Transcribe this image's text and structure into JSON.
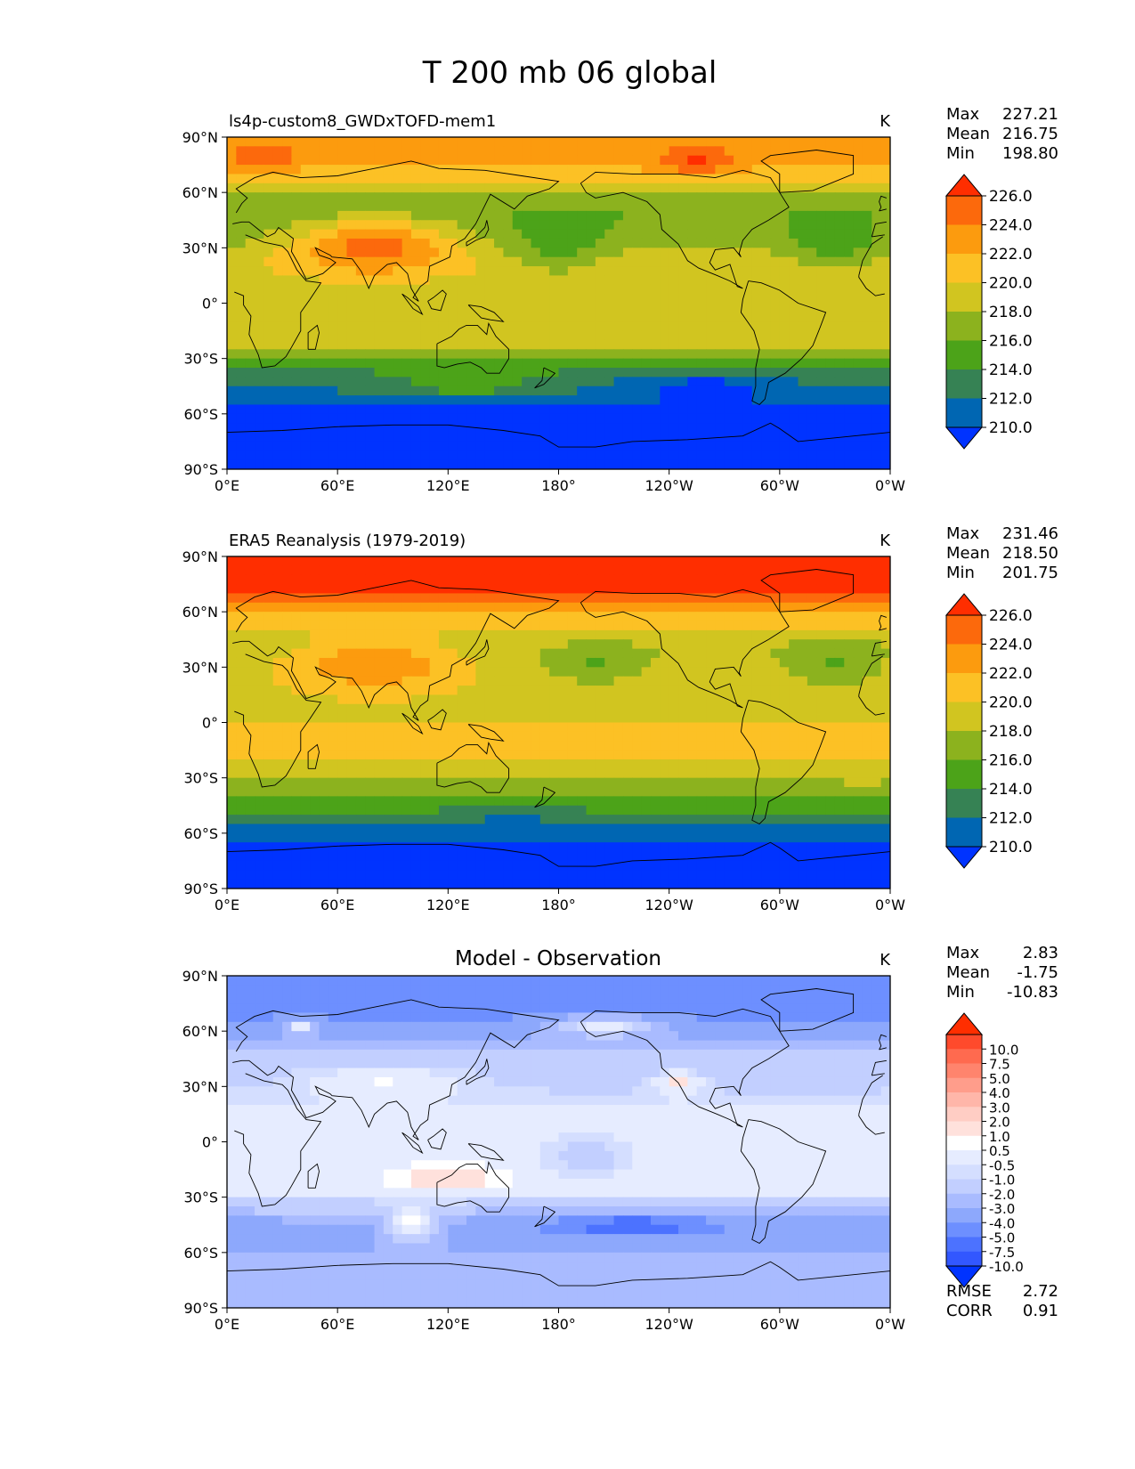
{
  "figure": {
    "title": "T 200 mb 06 global"
  },
  "colors": {
    "full_field": [
      "#0033ff",
      "#0066b2",
      "#368254",
      "#4ca319",
      "#8cb21e",
      "#d1c520",
      "#fcc125",
      "#fc9b0e",
      "#fc690c",
      "#ff2e00"
    ],
    "difference": [
      "#0033ff",
      "#3257ff",
      "#4c72ff",
      "#6d8fff",
      "#8da8fc",
      "#a9bbff",
      "#c2cfff",
      "#d4deff",
      "#e6ecff",
      "#ffffff",
      "#ffe1dc",
      "#ffcdc4",
      "#ffb6a9",
      "#ff9d8b",
      "#ff846d",
      "#ff6a4f",
      "#ff4a2c",
      "#ff2e00"
    ],
    "coastline": "#000000"
  },
  "chart_data": [
    {
      "type": "heatmap",
      "title": "ls4p-custom8_GWDxTOFD-mem1",
      "units": "K",
      "stats": [
        {
          "label": "Max",
          "value": "227.21"
        },
        {
          "label": "Mean",
          "value": "216.75"
        },
        {
          "label": "Min",
          "value": "198.80"
        }
      ],
      "colorbar": {
        "levels": [
          208,
          210,
          212,
          214,
          216,
          218,
          220,
          222,
          224,
          226,
          228
        ],
        "tick_labels": [
          "210.0",
          "212.0",
          "214.0",
          "216.0",
          "218.0",
          "220.0",
          "222.0",
          "224.0",
          "226.0"
        ],
        "extend": "both"
      },
      "field": {
        "zonal": [
          [
            -90,
            206
          ],
          [
            -70,
            207
          ],
          [
            -60,
            209
          ],
          [
            -50,
            211.5
          ],
          [
            -40,
            213
          ],
          [
            -30,
            216.5
          ],
          [
            -20,
            219
          ],
          [
            -10,
            219
          ],
          [
            0,
            218.5
          ],
          [
            10,
            219
          ],
          [
            20,
            219.5
          ],
          [
            30,
            218
          ],
          [
            40,
            216.5
          ],
          [
            50,
            216
          ],
          [
            60,
            218
          ],
          [
            70,
            221
          ],
          [
            80,
            223
          ],
          [
            90,
            223
          ]
        ],
        "anomalies": [
          {
            "lon": 80,
            "lat": 32,
            "rlon": 45,
            "rlat": 15,
            "amp": 7
          },
          {
            "lon": 180,
            "lat": 30,
            "rlon": 25,
            "rlat": 15,
            "amp": -3
          },
          {
            "lon": 330,
            "lat": 30,
            "rlon": 25,
            "rlat": 12,
            "amp": -3
          },
          {
            "lon": 255,
            "lat": 75,
            "rlon": 20,
            "rlat": 8,
            "amp": 4
          },
          {
            "lon": 20,
            "lat": 78,
            "rlon": 18,
            "rlat": 6,
            "amp": 3
          },
          {
            "lon": 130,
            "lat": -45,
            "rlon": 40,
            "rlat": 6,
            "amp": 3
          },
          {
            "lon": 260,
            "lat": -45,
            "rlon": 40,
            "rlat": 8,
            "amp": -3
          }
        ]
      },
      "x_ticks": [
        "0°E",
        "60°E",
        "120°E",
        "180°",
        "120°W",
        "60°W",
        "0°W"
      ],
      "y_ticks": [
        "90°N",
        "60°N",
        "30°N",
        "0°",
        "30°S",
        "60°S",
        "90°S"
      ],
      "xlim": [
        0,
        360
      ],
      "ylim": [
        -90,
        90
      ]
    },
    {
      "type": "heatmap",
      "title": "ERA5 Reanalysis (1979-2019)",
      "units": "K",
      "stats": [
        {
          "label": "Max",
          "value": "231.46"
        },
        {
          "label": "Mean",
          "value": "218.50"
        },
        {
          "label": "Min",
          "value": "201.75"
        }
      ],
      "colorbar": {
        "levels": [
          208,
          210,
          212,
          214,
          216,
          218,
          220,
          222,
          224,
          226,
          228
        ],
        "tick_labels": [
          "210.0",
          "212.0",
          "214.0",
          "216.0",
          "218.0",
          "220.0",
          "222.0",
          "224.0",
          "226.0"
        ],
        "extend": "both"
      },
      "field": {
        "zonal": [
          [
            -90,
            206
          ],
          [
            -70,
            208
          ],
          [
            -60,
            211
          ],
          [
            -50,
            214
          ],
          [
            -40,
            216.5
          ],
          [
            -30,
            218.5
          ],
          [
            -20,
            220
          ],
          [
            -10,
            220.5
          ],
          [
            0,
            220
          ],
          [
            10,
            219.5
          ],
          [
            20,
            219.5
          ],
          [
            30,
            219
          ],
          [
            40,
            218
          ],
          [
            50,
            219.5
          ],
          [
            60,
            222.5
          ],
          [
            70,
            226.5
          ],
          [
            80,
            228
          ],
          [
            90,
            228
          ]
        ],
        "anomalies": [
          {
            "lon": 80,
            "lat": 33,
            "rlon": 45,
            "rlat": 14,
            "amp": 5
          },
          {
            "lon": 200,
            "lat": 30,
            "rlon": 25,
            "rlat": 10,
            "amp": -3
          },
          {
            "lon": 330,
            "lat": 30,
            "rlon": 25,
            "rlat": 12,
            "amp": -3
          },
          {
            "lon": 155,
            "lat": -48,
            "rlon": 35,
            "rlat": 8,
            "amp": -2
          }
        ]
      },
      "x_ticks": [
        "0°E",
        "60°E",
        "120°E",
        "180°",
        "120°W",
        "60°W",
        "0°W"
      ],
      "y_ticks": [
        "90°N",
        "60°N",
        "30°N",
        "0°",
        "30°S",
        "60°S",
        "90°S"
      ],
      "xlim": [
        0,
        360
      ],
      "ylim": [
        -90,
        90
      ]
    },
    {
      "type": "heatmap",
      "title": "Model - Observation",
      "units": "K",
      "stats": [
        {
          "label": "Max",
          "value": "2.83"
        },
        {
          "label": "Mean",
          "value": "-1.75"
        },
        {
          "label": "Min",
          "value": "-10.83"
        }
      ],
      "colorbar": {
        "levels": [
          -12,
          -10,
          -7.5,
          -5,
          -4,
          -3,
          -2,
          -1,
          -0.5,
          0.5,
          1,
          2,
          3,
          4,
          5,
          7.5,
          10,
          12
        ],
        "tick_labels": [
          "-10.0",
          "-7.5",
          "-5.0",
          "-4.0",
          "-3.0",
          "-2.0",
          "-1.0",
          "-0.5",
          "0.5",
          "1.0",
          "2.0",
          "3.0",
          "4.0",
          "5.0",
          "7.5",
          "10.0"
        ],
        "extend": "both"
      },
      "scores": [
        {
          "label": "RMSE",
          "value": "2.72"
        },
        {
          "label": "CORR",
          "value": "0.91"
        }
      ],
      "field": {
        "zonal": [
          [
            -90,
            -3
          ],
          [
            -75,
            -2.5
          ],
          [
            -60,
            -3
          ],
          [
            -45,
            -3.5
          ],
          [
            -35,
            -1.5
          ],
          [
            -25,
            0
          ],
          [
            -10,
            0
          ],
          [
            0,
            0
          ],
          [
            10,
            0
          ],
          [
            20,
            -0.5
          ],
          [
            30,
            -1.2
          ],
          [
            40,
            -1.5
          ],
          [
            50,
            -1.8
          ],
          [
            60,
            -3.5
          ],
          [
            70,
            -4.2
          ],
          [
            80,
            -4.5
          ],
          [
            90,
            -4.5
          ]
        ],
        "anomalies": [
          {
            "lon": 85,
            "lat": 33,
            "rlon": 45,
            "rlat": 8,
            "amp": 1.8
          },
          {
            "lon": 245,
            "lat": 32,
            "rlon": 12,
            "rlat": 6,
            "amp": 2.5
          },
          {
            "lon": 205,
            "lat": 63,
            "rlon": 25,
            "rlat": 5,
            "amp": 4
          },
          {
            "lon": 40,
            "lat": 63,
            "rlon": 8,
            "rlat": 4,
            "amp": 4
          },
          {
            "lon": 120,
            "lat": -20,
            "rlon": 35,
            "rlat": 8,
            "amp": 1.6
          },
          {
            "lon": 100,
            "lat": -45,
            "rlon": 15,
            "rlat": 8,
            "amp": 4
          },
          {
            "lon": 195,
            "lat": -8,
            "rlon": 25,
            "rlat": 12,
            "amp": -1.5
          },
          {
            "lon": 220,
            "lat": -45,
            "rlon": 45,
            "rlat": 6,
            "amp": -2.5
          }
        ]
      },
      "x_ticks": [
        "0°E",
        "60°E",
        "120°E",
        "180°",
        "120°W",
        "60°W",
        "0°W"
      ],
      "y_ticks": [
        "90°N",
        "60°N",
        "30°N",
        "0°",
        "30°S",
        "60°S",
        "90°S"
      ],
      "xlim": [
        0,
        360
      ],
      "ylim": [
        -90,
        90
      ]
    }
  ]
}
